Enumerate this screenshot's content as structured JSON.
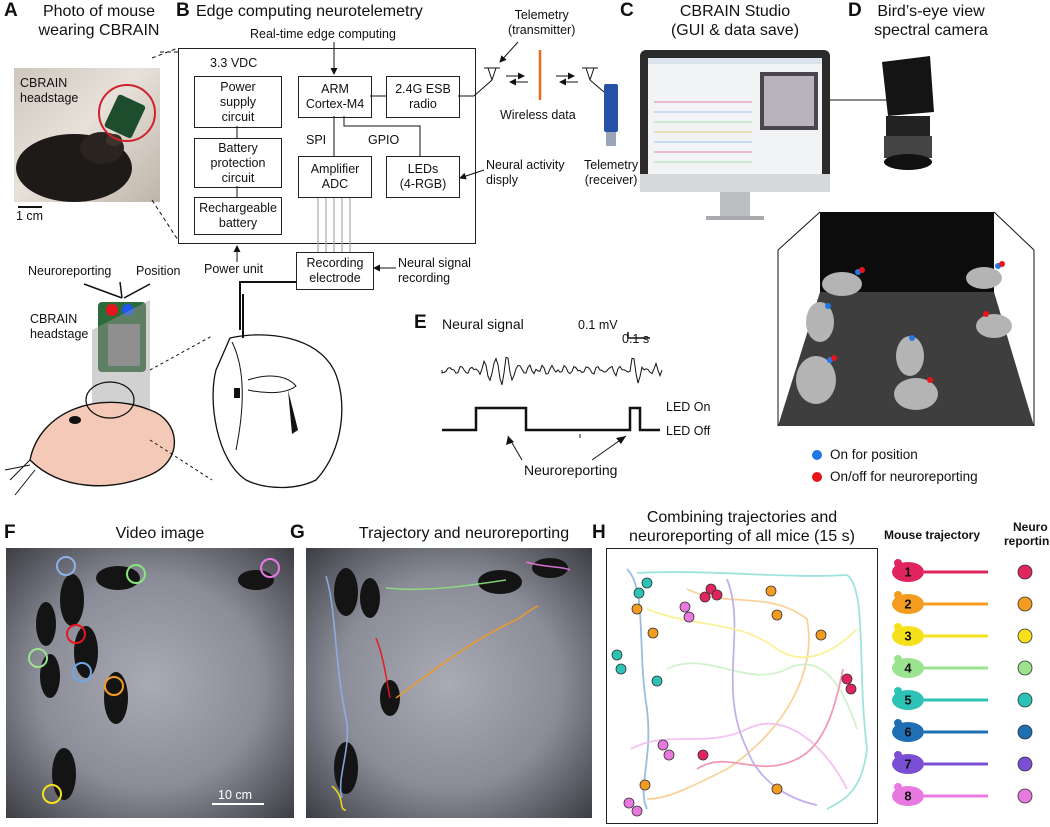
{
  "panelA": {
    "letter": "A",
    "title": "Photo of mouse wearing CBRAIN",
    "title_line1": "Photo of mouse",
    "title_line2": "wearing CBRAIN",
    "photo_label_line1": "CBRAIN",
    "photo_label_line2": "headstage",
    "scale": "1 cm",
    "neuroreporting": "Neuroreporting",
    "position": "Position",
    "headstage_line1": "CBRAIN",
    "headstage_line2": "headstage"
  },
  "panelB": {
    "letter": "B",
    "title": "Edge computing neurotelemetry",
    "realtime": "Real-time edge computing",
    "vdc": "3.3 VDC",
    "power_supply": [
      "Power",
      "supply",
      "circuit"
    ],
    "battery_protection": [
      "Battery",
      "protection",
      "circuit"
    ],
    "rechargeable": [
      "Rechargeable",
      "battery"
    ],
    "arm": [
      "ARM",
      "Cortex-M4"
    ],
    "radio": [
      "2.4G ESB",
      "radio"
    ],
    "spi": "SPI",
    "gpio": "GPIO",
    "amplifier": [
      "Amplifier",
      "ADC"
    ],
    "leds": [
      "LEDs",
      "(4-RGB)"
    ],
    "neural_display": [
      "Neural activity",
      "disply"
    ],
    "power_unit": "Power unit",
    "recording_electrode": [
      "Recording",
      "electrode"
    ],
    "neural_recording": [
      "Neural signal",
      "recording"
    ],
    "telemetry_tx": [
      "Telemetry",
      "(transmitter)"
    ],
    "wireless": "Wireless data",
    "telemetry_rx": [
      "Telemetry",
      "(receiver)"
    ]
  },
  "panelC": {
    "letter": "C",
    "title_line1": "CBRAIN Studio",
    "title_line2": "(GUI & data save)"
  },
  "panelD": {
    "letter": "D",
    "title_line1": "Bird’s-eye view",
    "title_line2": "spectral camera",
    "legend_blue": "On for position",
    "legend_red": "On/off for neuroreporting",
    "blue_color": "#1f77e8",
    "red_color": "#e8161c"
  },
  "panelE": {
    "letter": "E",
    "title": "Neural signal",
    "scale_mv": "0.1 mV",
    "scale_s": "0.1 s",
    "led_on": "LED On",
    "led_off": "LED Off",
    "neuroreporting": "Neuroreporting"
  },
  "panelF": {
    "letter": "F",
    "title": "Video image",
    "scale": "10 cm"
  },
  "panelG": {
    "letter": "G",
    "title": "Trajectory and neuroreporting"
  },
  "panelH": {
    "letter": "H",
    "title_line1": "Combining trajectories and",
    "title_line2": "neuroreporting of all mice (15 s)",
    "col_trajectory": "Mouse trajectory",
    "col_neuro_line1": "Neuro",
    "col_neuro_line2": "reporting",
    "mice": [
      {
        "id": "1",
        "color": "#e0245e"
      },
      {
        "id": "2",
        "color": "#f39c1f"
      },
      {
        "id": "3",
        "color": "#f5e11b"
      },
      {
        "id": "4",
        "color": "#9be38f"
      },
      {
        "id": "5",
        "color": "#2cc3b6"
      },
      {
        "id": "6",
        "color": "#1f6fb5"
      },
      {
        "id": "7",
        "color": "#7a4fd6"
      },
      {
        "id": "8",
        "color": "#e879e0"
      }
    ]
  }
}
